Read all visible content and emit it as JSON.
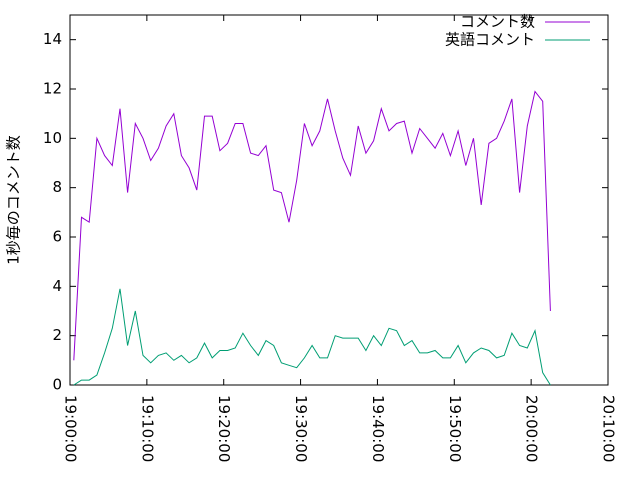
{
  "chart_data": {
    "type": "line",
    "ylabel": "1秒毎のコメント数",
    "x": [
      "19:00:30",
      "19:01:30",
      "19:02:30",
      "19:03:30",
      "19:04:30",
      "19:05:30",
      "19:06:30",
      "19:07:30",
      "19:08:30",
      "19:09:30",
      "19:10:30",
      "19:11:30",
      "19:12:30",
      "19:13:30",
      "19:14:30",
      "19:15:30",
      "19:16:30",
      "19:17:30",
      "19:18:30",
      "19:19:30",
      "19:20:30",
      "19:21:30",
      "19:22:30",
      "19:23:30",
      "19:24:30",
      "19:25:30",
      "19:26:30",
      "19:27:30",
      "19:28:30",
      "19:29:30",
      "19:30:30",
      "19:31:30",
      "19:32:30",
      "19:33:30",
      "19:34:30",
      "19:35:30",
      "19:36:30",
      "19:37:30",
      "19:38:30",
      "19:39:30",
      "19:40:30",
      "19:41:30",
      "19:42:30",
      "19:43:30",
      "19:44:30",
      "19:45:30",
      "19:46:30",
      "19:47:30",
      "19:48:30",
      "19:49:30",
      "19:50:30",
      "19:51:30",
      "19:52:30",
      "19:53:30",
      "19:54:30",
      "19:55:30",
      "19:56:30",
      "19:57:30",
      "19:58:30",
      "19:59:30",
      "20:00:30",
      "20:01:30",
      "20:02:30"
    ],
    "series": [
      {
        "name": "コメント数",
        "color": "#9400d3",
        "values": [
          1.0,
          6.8,
          6.6,
          10,
          9.3,
          8.9,
          11.2,
          7.8,
          10.6,
          10,
          9.1,
          9.6,
          10.5,
          11,
          9.3,
          8.8,
          7.9,
          10.9,
          10.9,
          9.5,
          9.8,
          10.6,
          10.6,
          9.4,
          9.3,
          9.7,
          7.9,
          7.8,
          6.6,
          8.3,
          10.6,
          9.7,
          10.3,
          11.6,
          10.3,
          9.2,
          8.5,
          10.5,
          9.4,
          9.9,
          11.2,
          10.3,
          10.6,
          10.7,
          9.4,
          10.4,
          10.0,
          9.6,
          10.2,
          9.3,
          10.3,
          8.9,
          10.0,
          7.3,
          9.8,
          10.0,
          10.7,
          11.6,
          7.8,
          10.5,
          11.9,
          11.5,
          3.0
        ]
      },
      {
        "name": "英語コメント",
        "color": "#009e73",
        "values": [
          0,
          0.2,
          0.2,
          0.4,
          1.3,
          2.3,
          3.9,
          1.6,
          3.0,
          1.2,
          0.9,
          1.2,
          1.3,
          1.0,
          1.2,
          0.9,
          1.1,
          1.7,
          1.1,
          1.4,
          1.4,
          1.5,
          2.1,
          1.6,
          1.2,
          1.8,
          1.6,
          0.9,
          0.8,
          0.7,
          1.1,
          1.6,
          1.1,
          1.1,
          2.0,
          1.9,
          1.9,
          1.9,
          1.4,
          2.0,
          1.6,
          2.3,
          2.2,
          1.6,
          1.8,
          1.3,
          1.3,
          1.4,
          1.1,
          1.1,
          1.6,
          0.9,
          1.3,
          1.5,
          1.4,
          1.1,
          1.2,
          2.1,
          1.6,
          1.5,
          2.2,
          0.5,
          0
        ]
      }
    ],
    "xlim": [
      "19:00:00",
      "20:10:00"
    ],
    "xticks": [
      "19:00:00",
      "19:10:00",
      "19:20:00",
      "19:30:00",
      "19:40:00",
      "19:50:00",
      "20:00:00",
      "20:10:00"
    ],
    "ylim": [
      0,
      15
    ],
    "yticks": [
      0,
      2,
      4,
      6,
      8,
      10,
      12,
      14
    ],
    "legend": "top-right"
  }
}
